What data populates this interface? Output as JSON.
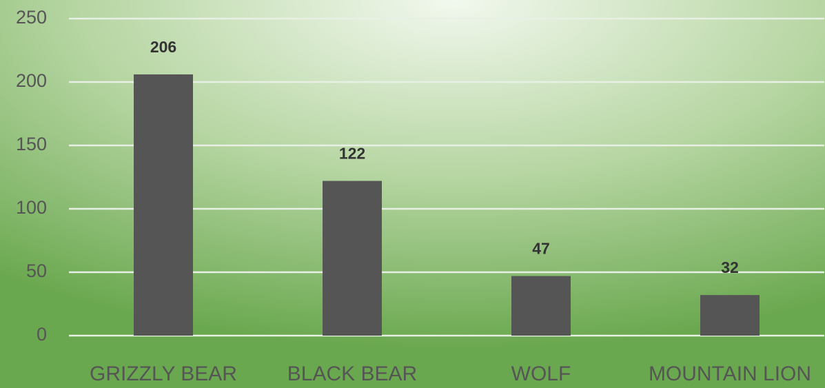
{
  "chart_data": {
    "type": "bar",
    "categories": [
      "GRIZZLY BEAR",
      "BLACK BEAR",
      "WOLF",
      "MOUNTAIN LION"
    ],
    "values": [
      206,
      122,
      47,
      32
    ],
    "color": "#555555",
    "ylim": [
      0,
      250
    ],
    "yticks": [
      0,
      50,
      100,
      150,
      200,
      250
    ],
    "grid": true
  }
}
